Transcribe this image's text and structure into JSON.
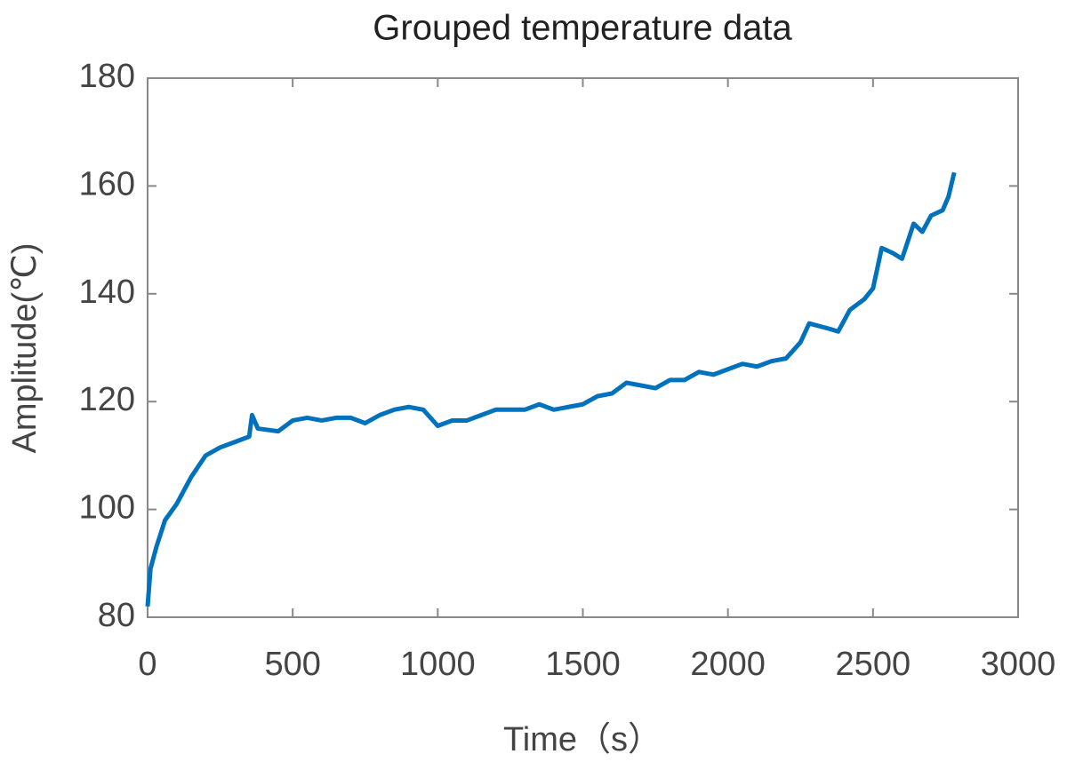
{
  "chart_data": {
    "type": "line",
    "title": "Grouped temperature data",
    "x_label": "Time（s）",
    "y_label": "Amplitude(℃)",
    "xlim": [
      0,
      3000
    ],
    "xticks": [
      0,
      500,
      1000,
      1500,
      2000,
      2500,
      3000
    ],
    "ylim": [
      80,
      180
    ],
    "yticks": [
      80,
      100,
      120,
      140,
      160,
      180
    ],
    "grid": false,
    "x": [
      0,
      10,
      30,
      60,
      100,
      150,
      200,
      250,
      300,
      350,
      360,
      380,
      450,
      500,
      550,
      600,
      650,
      700,
      750,
      800,
      850,
      900,
      950,
      1000,
      1050,
      1100,
      1150,
      1200,
      1250,
      1300,
      1350,
      1400,
      1450,
      1500,
      1550,
      1600,
      1650,
      1700,
      1750,
      1800,
      1850,
      1900,
      1950,
      2000,
      2050,
      2100,
      2150,
      2200,
      2250,
      2280,
      2350,
      2380,
      2420,
      2470,
      2500,
      2530,
      2570,
      2600,
      2640,
      2670,
      2700,
      2740,
      2760,
      2780
    ],
    "series": [
      {
        "color": "#0072bd",
        "values": [
          82,
          89,
          93,
          98,
          101,
          106,
          110,
          111.5,
          112.5,
          113.5,
          117.5,
          115,
          114.5,
          116.5,
          117,
          116.5,
          117,
          117,
          116,
          117.5,
          118.5,
          119,
          118.5,
          115.5,
          116.5,
          116.5,
          117.5,
          118.5,
          118.5,
          118.5,
          119.5,
          118.5,
          119,
          119.5,
          121,
          121.5,
          123.5,
          123,
          122.5,
          124,
          124,
          125.5,
          125,
          126,
          127,
          126.5,
          127.5,
          128,
          131,
          134.5,
          133.5,
          133,
          137,
          139,
          141,
          148.5,
          147.5,
          146.5,
          153,
          151.5,
          154.5,
          155.5,
          158,
          162.5
        ]
      }
    ]
  }
}
